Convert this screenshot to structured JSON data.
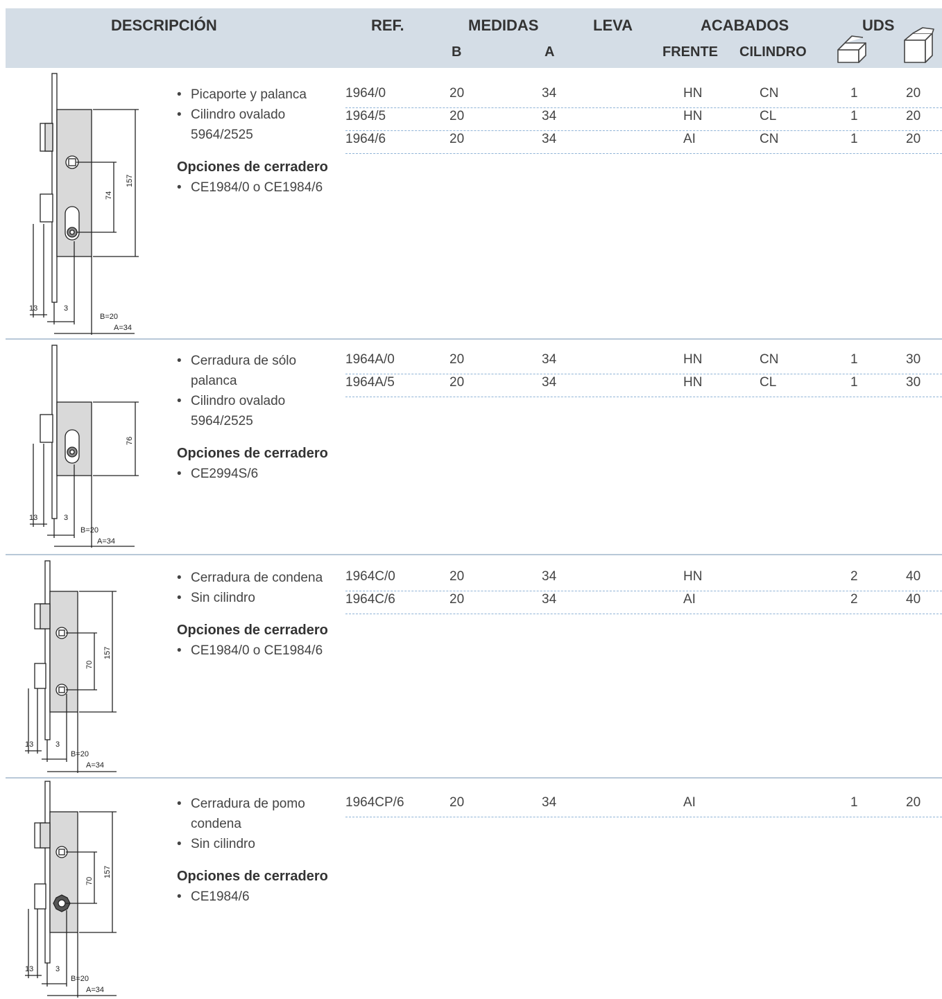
{
  "header": {
    "descripcion": "DESCRIPCIÓN",
    "ref": "REF.",
    "medidas": "MEDIDAS",
    "leva": "LEVA",
    "acabados": "ACABADOS",
    "uds": "UDS",
    "b": "B",
    "a": "A",
    "frente": "FRENTE",
    "cilindro": "CILINDRO",
    "icons": [
      "open-box-icon",
      "closed-box-icon"
    ]
  },
  "products": [
    {
      "bullets": [
        "Picaporte y palanca",
        "Cilindro ovalado 5964/2525"
      ],
      "options_title": "Opciones de cerradero",
      "options": [
        "CE1984/0 o CE1984/6"
      ],
      "rows": [
        {
          "ref": "1964/0",
          "b": "20",
          "a": "34",
          "frente": "HN",
          "cilindro": "CN",
          "uds1": "1",
          "uds2": "20"
        },
        {
          "ref": "1964/5",
          "b": "20",
          "a": "34",
          "frente": "HN",
          "cilindro": "CL",
          "uds1": "1",
          "uds2": "20"
        },
        {
          "ref": "1964/6",
          "b": "20",
          "a": "34",
          "frente": "AI",
          "cilindro": "CN",
          "uds1": "1",
          "uds2": "20"
        }
      ],
      "drawing": {
        "dims": [
          "157",
          "74",
          "13",
          "3",
          "B=20",
          "A=34"
        ]
      }
    },
    {
      "bullets": [
        "Cerradura de sólo palanca",
        "Cilindro ovalado 5964/2525"
      ],
      "options_title": "Opciones de cerradero",
      "options": [
        "CE2994S/6"
      ],
      "rows": [
        {
          "ref": "1964A/0",
          "b": "20",
          "a": "34",
          "frente": "HN",
          "cilindro": "CN",
          "uds1": "1",
          "uds2": "30"
        },
        {
          "ref": "1964A/5",
          "b": "20",
          "a": "34",
          "frente": "HN",
          "cilindro": "CL",
          "uds1": "1",
          "uds2": "30"
        }
      ],
      "drawing": {
        "dims": [
          "76",
          "13",
          "3",
          "B=20",
          "A=34"
        ]
      }
    },
    {
      "bullets": [
        "Cerradura de condena",
        "Sin cilindro"
      ],
      "options_title": "Opciones de cerradero",
      "options": [
        "CE1984/0 o CE1984/6"
      ],
      "rows": [
        {
          "ref": "1964C/0",
          "b": "20",
          "a": "34",
          "frente": "HN",
          "cilindro": "",
          "uds1": "2",
          "uds2": "40"
        },
        {
          "ref": "1964C/6",
          "b": "20",
          "a": "34",
          "frente": "AI",
          "cilindro": "",
          "uds1": "2",
          "uds2": "40"
        }
      ],
      "drawing": {
        "dims": [
          "157",
          "70",
          "13",
          "3",
          "B=20",
          "A=34"
        ]
      }
    },
    {
      "bullets": [
        "Cerradura de pomo condena",
        "Sin cilindro"
      ],
      "options_title": "Opciones de cerradero",
      "options": [
        "CE1984/6"
      ],
      "rows": [
        {
          "ref": "1964CP/6",
          "b": "20",
          "a": "34",
          "frente": "AI",
          "cilindro": "",
          "uds1": "1",
          "uds2": "20"
        }
      ],
      "drawing": {
        "dims": [
          "157",
          "70",
          "13",
          "3",
          "B=20",
          "A=34"
        ]
      }
    }
  ]
}
